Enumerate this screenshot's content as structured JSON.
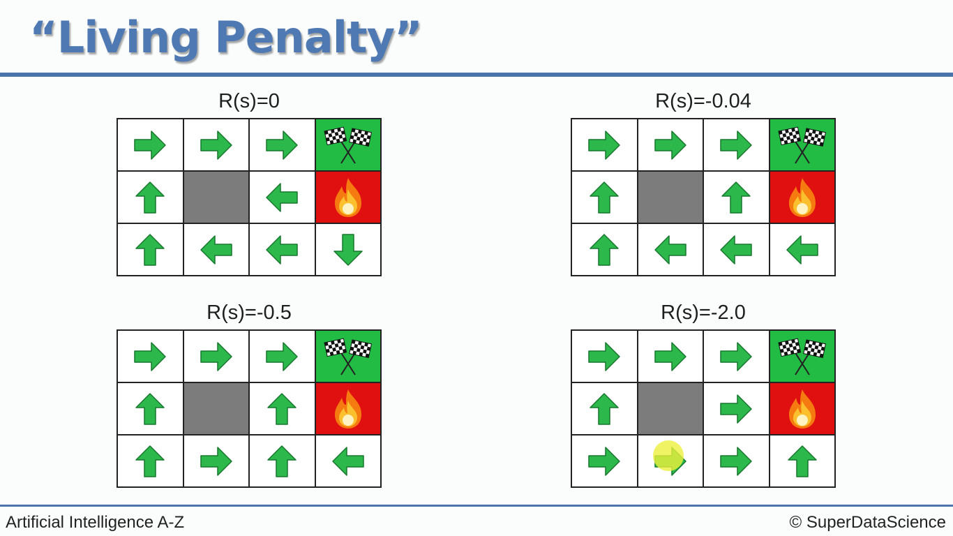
{
  "slide": {
    "title": "“Living Penalty”",
    "footer_left": "Artificial Intelligence A-Z",
    "footer_right": "© SuperDataScience"
  },
  "panels": [
    {
      "label": "R(s)=0",
      "rows": [
        [
          "right",
          "right",
          "right",
          "goal"
        ],
        [
          "up",
          "wall",
          "left",
          "fire"
        ],
        [
          "up",
          "left",
          "left",
          "down"
        ]
      ]
    },
    {
      "label": "R(s)=-0.04",
      "rows": [
        [
          "right",
          "right",
          "right",
          "goal"
        ],
        [
          "up",
          "wall",
          "up",
          "fire"
        ],
        [
          "up",
          "left",
          "left",
          "left"
        ]
      ]
    },
    {
      "label": "R(s)=-0.5",
      "rows": [
        [
          "right",
          "right",
          "right",
          "goal"
        ],
        [
          "up",
          "wall",
          "up",
          "fire"
        ],
        [
          "up",
          "right",
          "up",
          "left"
        ]
      ]
    },
    {
      "label": "R(s)=-2.0",
      "rows": [
        [
          "right",
          "right",
          "right",
          "goal"
        ],
        [
          "up",
          "wall",
          "right",
          "fire"
        ],
        [
          "right",
          "right",
          "right",
          "up"
        ]
      ]
    }
  ],
  "colors": {
    "title": "#4f79b3",
    "rule": "#4a73ac",
    "arrow": "#2db84b",
    "goal_cell": "#22bb44",
    "fire_cell": "#e01010",
    "wall_cell": "#7c7c7c"
  },
  "icons": {
    "goal": "checkered-flags-icon",
    "fire": "fire-icon"
  }
}
